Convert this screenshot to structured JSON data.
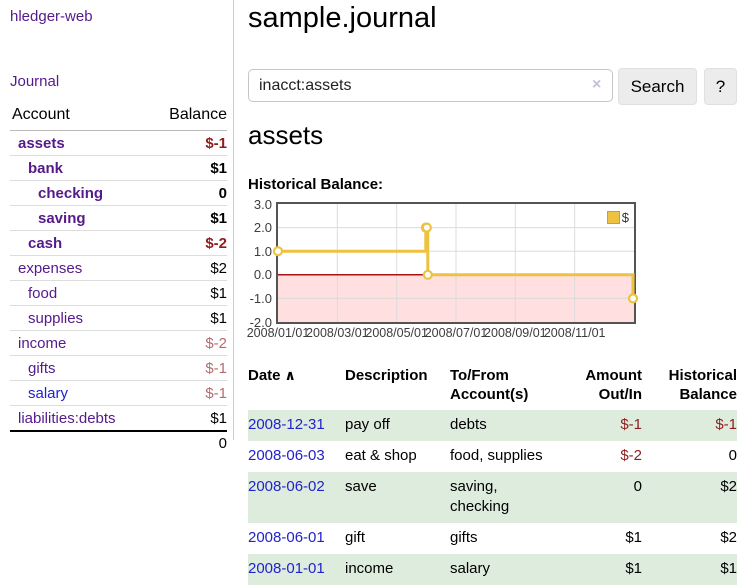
{
  "app": {
    "brand": "hledger-web",
    "nav_journal": "Journal"
  },
  "sidebar": {
    "header": {
      "account": "Account",
      "balance": "Balance"
    },
    "accounts": [
      {
        "name": "assets",
        "level": 1,
        "bold": true,
        "link": "visited",
        "balance": "$-1",
        "balance_style": "neg-strong"
      },
      {
        "name": "bank",
        "level": 2,
        "bold": true,
        "link": "visited",
        "balance": "$1",
        "balance_style": "pos"
      },
      {
        "name": "checking",
        "level": 3,
        "bold": true,
        "link": "visited",
        "balance": "0",
        "balance_style": "pos"
      },
      {
        "name": "saving",
        "level": 3,
        "bold": true,
        "link": "visited",
        "balance": "$1",
        "balance_style": "pos"
      },
      {
        "name": "cash",
        "level": 2,
        "bold": true,
        "link": "visited",
        "balance": "$-2",
        "balance_style": "neg-strong"
      },
      {
        "name": "expenses",
        "level": 1,
        "bold": false,
        "link": "visited",
        "balance": "$2",
        "balance_style": "pos"
      },
      {
        "name": "food",
        "level": 2,
        "bold": false,
        "link": "visited",
        "balance": "$1",
        "balance_style": "pos"
      },
      {
        "name": "supplies",
        "level": 2,
        "bold": false,
        "link": "visited",
        "balance": "$1",
        "balance_style": "pos"
      },
      {
        "name": "income",
        "level": 1,
        "bold": false,
        "link": "visited",
        "balance": "$-2",
        "balance_style": "neg"
      },
      {
        "name": "gifts",
        "level": 2,
        "bold": false,
        "link": "visited",
        "balance": "$-1",
        "balance_style": "neg"
      },
      {
        "name": "salary",
        "level": 2,
        "bold": false,
        "link": "new",
        "balance": "$-1",
        "balance_style": "neg"
      },
      {
        "name": "liabilities:debts",
        "level": 1,
        "bold": false,
        "link": "visited",
        "balance": "$1",
        "balance_style": "pos"
      }
    ],
    "total": "0"
  },
  "main": {
    "title": "sample.journal",
    "search": {
      "value": "inacct:assets",
      "clear_icon": "×",
      "button_label": "Search",
      "help_label": "?"
    },
    "account_heading": "assets",
    "chart_label": "Historical Balance:"
  },
  "chart_data": {
    "type": "line",
    "title": "Historical Balance",
    "series": [
      {
        "name": "$",
        "steps": true,
        "color": "#edc240",
        "points": [
          [
            "2008-01-01",
            1
          ],
          [
            "2008-06-01",
            2
          ],
          [
            "2008-06-02",
            2
          ],
          [
            "2008-06-03",
            0
          ],
          [
            "2008-12-31",
            -1
          ]
        ]
      }
    ],
    "x_range": [
      "2008-01-01",
      "2009-01-01"
    ],
    "x_tick_labels": [
      "2008/01/01",
      "2008/03/01",
      "2008/05/01",
      "2008/07/01",
      "2008/09/01",
      "2008/11/01"
    ],
    "y_ticks": [
      "3.0",
      "2.0",
      "1.0",
      "0.0",
      "-1.0",
      "-2.0"
    ],
    "ylim": [
      -2,
      3
    ],
    "grid": true,
    "legend_position": "top-right",
    "negative_region_color": "#ffdfdf",
    "zero_line_color": "#aa1111",
    "grid_color": "#dcdcdc",
    "border_color": "#545454"
  },
  "table": {
    "headers": {
      "date": "Date",
      "sort_icon": "∧",
      "description": "Description",
      "tofrom": "To/From Account(s)",
      "amount": "Amount Out/In",
      "balance": "Historical Balance"
    },
    "rows": [
      {
        "date": "2008-12-31",
        "description": "pay off",
        "accounts": "debts",
        "amount": "$-1",
        "amount_neg": true,
        "balance": "$-1",
        "balance_neg": true
      },
      {
        "date": "2008-06-03",
        "description": "eat & shop",
        "accounts": "food, supplies",
        "amount": "$-2",
        "amount_neg": true,
        "balance": "0",
        "balance_neg": false
      },
      {
        "date": "2008-06-02",
        "description": "save",
        "accounts": "saving, checking",
        "amount": "0",
        "amount_neg": false,
        "balance": "$2",
        "balance_neg": false
      },
      {
        "date": "2008-06-01",
        "description": "gift",
        "accounts": "gifts",
        "amount": "$1",
        "amount_neg": false,
        "balance": "$2",
        "balance_neg": false
      },
      {
        "date": "2008-01-01",
        "description": "income",
        "accounts": "salary",
        "amount": "$1",
        "amount_neg": false,
        "balance": "$1",
        "balance_neg": false
      }
    ]
  }
}
